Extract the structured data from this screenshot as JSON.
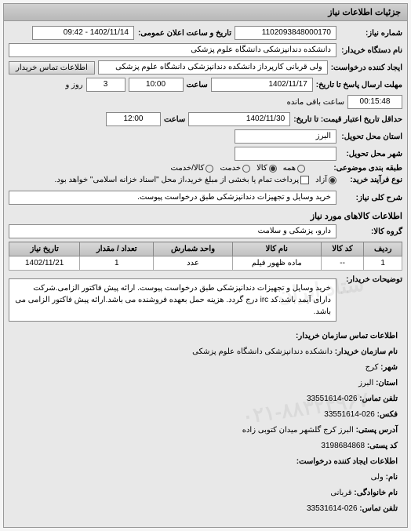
{
  "panel_title": "جزئیات اطلاعات نیاز",
  "fields": {
    "req_no_label": "شماره نیاز:",
    "req_no": "1102093848000170",
    "public_dt_label": "تاریخ و ساعت اعلان عمومی:",
    "public_dt": "1402/11/14 - 09:42",
    "buyer_org_label": "نام دستگاه خریدار:",
    "buyer_org": "دانشکده دندانپزشکی دانشگاه علوم پزشکی",
    "creator_label": "ایجاد کننده درخواست:",
    "creator": "ولی قربانی کارپرداز دانشکده دندانپزشکی دانشگاه علوم پزشکی",
    "contact_btn": "اطلاعات تماس خریدار",
    "deadline_reply_label": "مهلت ارسال پاسخ تا تاریخ:",
    "deadline_date": "1402/11/17",
    "deadline_time_label": "ساعت",
    "deadline_time": "10:00",
    "remaining_days": "3",
    "remaining_days_label": "روز و",
    "remaining_time": "00:15:48",
    "remaining_suffix": "ساعت باقی مانده",
    "price_valid_label": "حداقل تاریخ اعتبار قیمت: تا تاریخ:",
    "price_valid_date": "1402/11/30",
    "price_valid_time": "12:00",
    "province_label": "استان محل تحویل:",
    "province": "البرز",
    "city_label": "شهر محل تحویل:",
    "city": "",
    "category_label": "طبقه بندی موضوعی:",
    "process_type_label": "نوع فرآیند خرید:",
    "radios": {
      "opt_all": "همه",
      "opt_goods": "کالا",
      "opt_service": "خدمت",
      "opt_goods_service": "کالا/خدمت"
    },
    "proc_radios": {
      "opt_free": "آزاد",
      "opt_partial": "پرداخت تمام یا بخشی از مبلغ خرید،از محل \"اسناد خزانه اسلامی\" خواهد بود."
    },
    "need_title_label": "شرح کلی نیاز:",
    "need_title": "خرید وسایل و تجهیزات دندانپزشکی طبق درخواست پیوست.",
    "goods_section": "اطلاعات کالاهای مورد نیاز",
    "goods_group_label": "گروه کالا:",
    "goods_group": "دارو، پزشکی و سلامت",
    "table": {
      "headers": [
        "ردیف",
        "کد کالا",
        "نام کالا",
        "واحد شمارش",
        "تعداد / مقدار",
        "تاریخ نیاز"
      ],
      "rows": [
        [
          "1",
          "--",
          "ماده ظهور فیلم",
          "عدد",
          "1",
          "1402/11/21"
        ]
      ]
    },
    "buyer_desc_label": "توضیحات خریدار:",
    "buyer_desc": "خرید وسایل و تجهیزات دندانپزشکی طبق درخواست پیوست.   ارائه پیش فاکتور الزامی.شرکت دارای آیمد باشد.کد irc درج گردد. هزینه حمل بعهده فروشنده می باشد.ارائه پیش فاکتور الزامی می باشد.",
    "contact": {
      "title": "اطلاعات تماس سازمان خریدار:",
      "org_label": "نام سازمان خریدار:",
      "org": "دانشکده دندانپزشکی دانشگاه علوم پزشکی",
      "city_label": "شهر:",
      "city": "کرج",
      "province_label": "استان:",
      "province": "البرز",
      "phone_label": "تلفن تماس:",
      "phone": "026-33551614",
      "fax_label": "فکس:",
      "fax": "026-33551614",
      "postal_addr_label": "آدرس پستی:",
      "postal_addr": "البرز کرج گلشهر میدان کتوبی زاده",
      "postal_code_label": "کد پستی:",
      "postal_code": "3198684868",
      "creator_title": "اطلاعات ایجاد کننده درخواست:",
      "name_label": "نام:",
      "name": "ولی",
      "family_label": "نام خانوادگی:",
      "family": "قربانی",
      "tel_label": "تلفن تماس:",
      "tel": "026-33531614"
    }
  }
}
